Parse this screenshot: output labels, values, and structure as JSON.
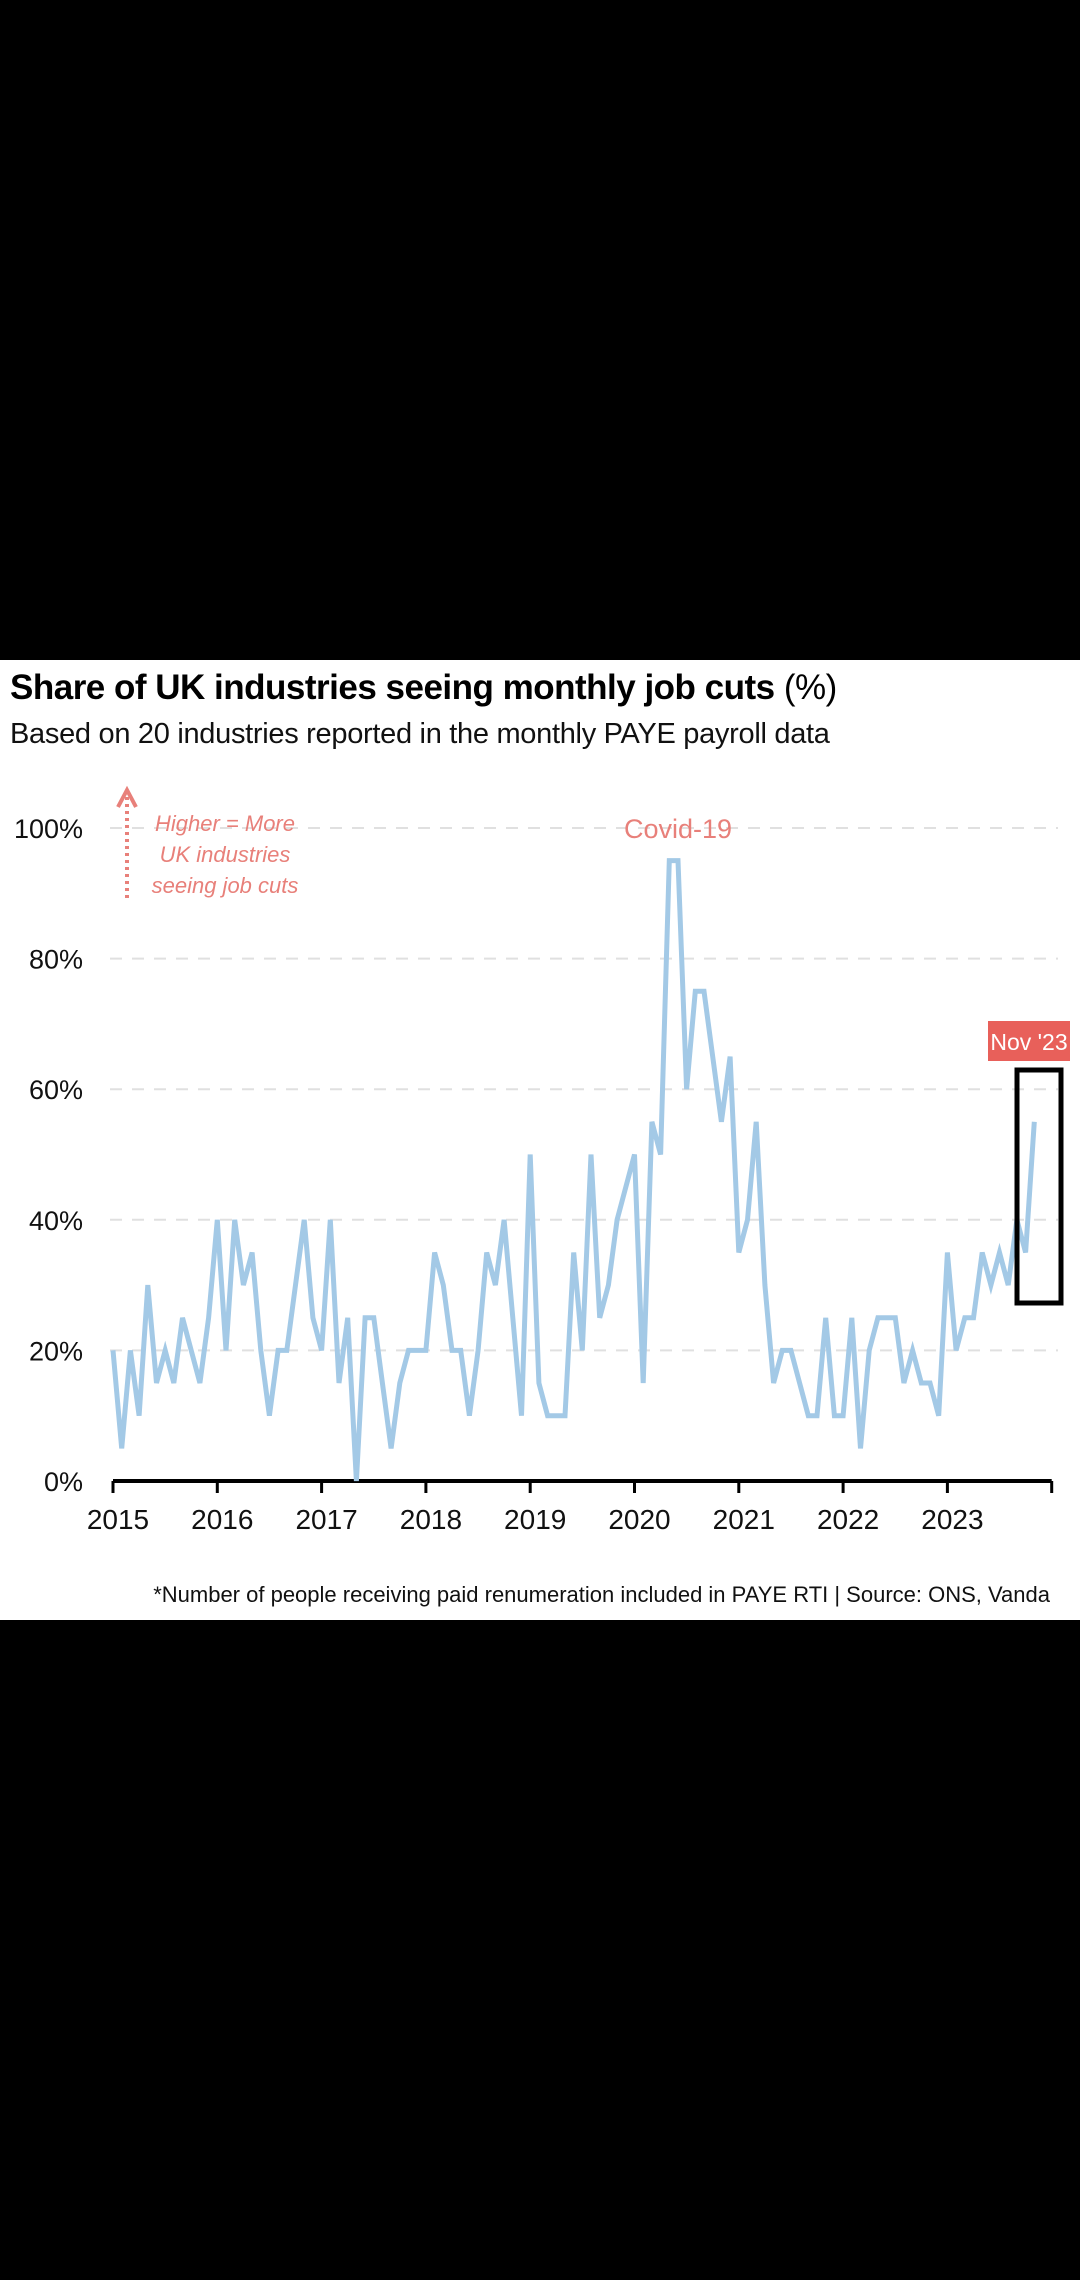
{
  "title_bold": "Share of UK industries seeing monthly job cuts",
  "title_unit": "(%)",
  "subtitle": "Based on 20 industries reported in the monthly PAYE payroll data",
  "footnote": "*Number of people receiving paid renumeration included in PAYE RTI | Source: ONS, Vanda",
  "colors": {
    "line": "#a3c9e6",
    "annotation": "#e8807a",
    "badge": "#e8605a",
    "grid": "#e0e0e0",
    "axis": "#000000"
  },
  "chart_data": {
    "type": "line",
    "title": "Share of UK industries seeing monthly job cuts (%)",
    "subtitle": "Based on 20 industries reported in the monthly PAYE payroll data",
    "xlabel": "",
    "ylabel": "",
    "ylim": [
      0,
      100
    ],
    "yticks": [
      0,
      20,
      40,
      60,
      80,
      100
    ],
    "ytick_labels": [
      "0%",
      "20%",
      "40%",
      "60%",
      "80%",
      "100%"
    ],
    "xticks": [
      "2015",
      "2016",
      "2017",
      "2018",
      "2019",
      "2020",
      "2021",
      "2022",
      "2023"
    ],
    "x_start": "Jan 2015",
    "x_end": "Nov 2023",
    "grid": "horizontal dashed",
    "series": [
      {
        "name": "Share of industries with job cuts (%)",
        "values": [
          20,
          5,
          20,
          10,
          30,
          15,
          20,
          15,
          25,
          20,
          15,
          25,
          40,
          20,
          40,
          30,
          35,
          20,
          10,
          20,
          20,
          30,
          40,
          25,
          20,
          40,
          15,
          25,
          0,
          25,
          25,
          15,
          5,
          15,
          20,
          20,
          20,
          35,
          30,
          20,
          20,
          10,
          20,
          35,
          30,
          40,
          25,
          10,
          50,
          15,
          10,
          10,
          10,
          35,
          20,
          50,
          25,
          30,
          40,
          45,
          50,
          15,
          55,
          50,
          95,
          95,
          60,
          75,
          75,
          65,
          55,
          65,
          35,
          40,
          55,
          30,
          15,
          20,
          20,
          15,
          10,
          10,
          25,
          10,
          10,
          25,
          5,
          20,
          25,
          25,
          25,
          15,
          20,
          15,
          15,
          10,
          35,
          20,
          25,
          25,
          35,
          30,
          35,
          30,
          40,
          35,
          55
        ]
      }
    ],
    "annotations": [
      {
        "text": "Covid-19",
        "x": "2020",
        "y": 100
      },
      {
        "text": "Higher = More UK industries seeing job cuts",
        "type": "arrow-up"
      },
      {
        "text": "Nov '23",
        "type": "badge",
        "highlight_box": "Sep 2023 - Nov 2023"
      }
    ]
  },
  "annotations": {
    "covid": "Covid-19",
    "higher_lines": [
      "Higher = More",
      "UK industries",
      "seeing job cuts"
    ],
    "badge": "Nov '23"
  }
}
